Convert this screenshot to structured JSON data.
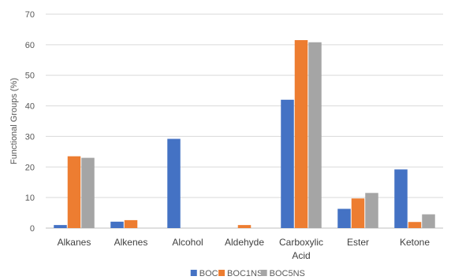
{
  "chart_data": {
    "type": "bar",
    "title": "",
    "xlabel": "",
    "ylabel": "Functional Groups (%)",
    "ylim": [
      0,
      70
    ],
    "yticks": [
      0,
      10,
      20,
      30,
      40,
      50,
      60,
      70
    ],
    "grid": true,
    "legend": "bottom",
    "categories": [
      [
        "Alkanes"
      ],
      [
        "Alkenes"
      ],
      [
        "Alcohol"
      ],
      [
        "Aldehyde"
      ],
      [
        "Carboxylic",
        "Acid"
      ],
      [
        "Ester"
      ],
      [
        "Ketone"
      ]
    ],
    "series": [
      {
        "name": "BOC",
        "color": "#4472c4",
        "values": [
          1.0,
          2.1,
          29.2,
          0,
          42.0,
          6.3,
          19.2
        ]
      },
      {
        "name": "BOC1NS",
        "color": "#ed7d31",
        "values": [
          23.5,
          2.6,
          0,
          1.0,
          61.5,
          9.7,
          2.0
        ]
      },
      {
        "name": "BOC5NS",
        "color": "#a5a5a5",
        "values": [
          23.0,
          0,
          0,
          0,
          60.8,
          11.5,
          4.5
        ]
      }
    ]
  }
}
